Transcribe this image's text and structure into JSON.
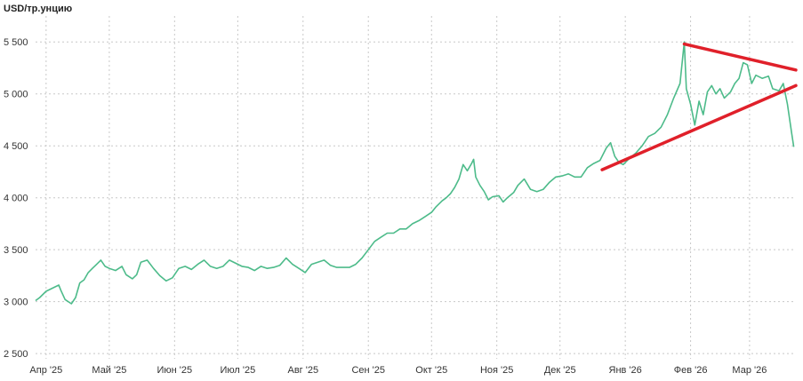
{
  "chart_data": {
    "type": "line",
    "ylabel": "USD/тр.унцию",
    "ylim": [
      2450,
      5750
    ],
    "y_ticks": [
      2500,
      3000,
      3500,
      4000,
      4500,
      5000,
      5500
    ],
    "y_tick_labels": [
      "2 500",
      "3 000",
      "3 500",
      "4 000",
      "4 500",
      "5 000",
      "5 500"
    ],
    "x_range": [
      "2025-03-27",
      "2026-03-23"
    ],
    "x_ticks": [
      {
        "date": "2025-04-01",
        "label": "Апр '25"
      },
      {
        "date": "2025-05-01",
        "label": "Май '25"
      },
      {
        "date": "2025-06-01",
        "label": "Июн '25"
      },
      {
        "date": "2025-07-01",
        "label": "Июл '25"
      },
      {
        "date": "2025-08-01",
        "label": "Авг '25"
      },
      {
        "date": "2025-09-01",
        "label": "Сен '25"
      },
      {
        "date": "2025-10-01",
        "label": "Окт '25"
      },
      {
        "date": "2025-11-01",
        "label": "Ноя '25"
      },
      {
        "date": "2025-12-01",
        "label": "Дек '25"
      },
      {
        "date": "2026-01-01",
        "label": "Янв '26"
      },
      {
        "date": "2026-02-01",
        "label": "Фев '26"
      },
      {
        "date": "2026-03-01",
        "label": "Мар '26"
      }
    ],
    "grid": true,
    "line_color": "#4dbb8a",
    "trendline_color": "#e0202a",
    "series": [
      {
        "points": [
          [
            "2025-03-27",
            3010
          ],
          [
            "2025-03-29",
            3040
          ],
          [
            "2025-04-01",
            3100
          ],
          [
            "2025-04-04",
            3130
          ],
          [
            "2025-04-07",
            3160
          ],
          [
            "2025-04-08",
            3110
          ],
          [
            "2025-04-10",
            3020
          ],
          [
            "2025-04-13",
            2980
          ],
          [
            "2025-04-15",
            3040
          ],
          [
            "2025-04-17",
            3180
          ],
          [
            "2025-04-19",
            3210
          ],
          [
            "2025-04-21",
            3280
          ],
          [
            "2025-04-23",
            3320
          ],
          [
            "2025-04-25",
            3360
          ],
          [
            "2025-04-27",
            3400
          ],
          [
            "2025-04-29",
            3340
          ],
          [
            "2025-05-01",
            3320
          ],
          [
            "2025-05-04",
            3300
          ],
          [
            "2025-05-07",
            3340
          ],
          [
            "2025-05-09",
            3260
          ],
          [
            "2025-05-12",
            3220
          ],
          [
            "2025-05-14",
            3260
          ],
          [
            "2025-05-16",
            3380
          ],
          [
            "2025-05-19",
            3400
          ],
          [
            "2025-05-22",
            3320
          ],
          [
            "2025-05-25",
            3250
          ],
          [
            "2025-05-28",
            3200
          ],
          [
            "2025-05-31",
            3230
          ],
          [
            "2025-06-03",
            3320
          ],
          [
            "2025-06-06",
            3340
          ],
          [
            "2025-06-09",
            3310
          ],
          [
            "2025-06-12",
            3360
          ],
          [
            "2025-06-15",
            3400
          ],
          [
            "2025-06-18",
            3340
          ],
          [
            "2025-06-21",
            3320
          ],
          [
            "2025-06-24",
            3340
          ],
          [
            "2025-06-27",
            3400
          ],
          [
            "2025-06-30",
            3370
          ],
          [
            "2025-07-03",
            3340
          ],
          [
            "2025-07-06",
            3330
          ],
          [
            "2025-07-09",
            3300
          ],
          [
            "2025-07-12",
            3340
          ],
          [
            "2025-07-15",
            3320
          ],
          [
            "2025-07-18",
            3330
          ],
          [
            "2025-07-21",
            3350
          ],
          [
            "2025-07-24",
            3420
          ],
          [
            "2025-07-27",
            3360
          ],
          [
            "2025-07-30",
            3320
          ],
          [
            "2025-08-02",
            3280
          ],
          [
            "2025-08-05",
            3360
          ],
          [
            "2025-08-08",
            3380
          ],
          [
            "2025-08-11",
            3400
          ],
          [
            "2025-08-14",
            3350
          ],
          [
            "2025-08-17",
            3330
          ],
          [
            "2025-08-20",
            3330
          ],
          [
            "2025-08-23",
            3330
          ],
          [
            "2025-08-26",
            3360
          ],
          [
            "2025-08-29",
            3420
          ],
          [
            "2025-09-01",
            3500
          ],
          [
            "2025-09-04",
            3580
          ],
          [
            "2025-09-07",
            3620
          ],
          [
            "2025-09-10",
            3660
          ],
          [
            "2025-09-13",
            3660
          ],
          [
            "2025-09-16",
            3700
          ],
          [
            "2025-09-19",
            3700
          ],
          [
            "2025-09-22",
            3750
          ],
          [
            "2025-09-25",
            3780
          ],
          [
            "2025-09-28",
            3820
          ],
          [
            "2025-10-01",
            3860
          ],
          [
            "2025-10-03",
            3910
          ],
          [
            "2025-10-06",
            3970
          ],
          [
            "2025-10-08",
            4000
          ],
          [
            "2025-10-10",
            4040
          ],
          [
            "2025-10-12",
            4100
          ],
          [
            "2025-10-14",
            4180
          ],
          [
            "2025-10-16",
            4320
          ],
          [
            "2025-10-18",
            4260
          ],
          [
            "2025-10-20",
            4330
          ],
          [
            "2025-10-21",
            4370
          ],
          [
            "2025-10-22",
            4200
          ],
          [
            "2025-10-24",
            4120
          ],
          [
            "2025-10-26",
            4060
          ],
          [
            "2025-10-28",
            3980
          ],
          [
            "2025-10-30",
            4010
          ],
          [
            "2025-11-02",
            4020
          ],
          [
            "2025-11-04",
            3960
          ],
          [
            "2025-11-06",
            4000
          ],
          [
            "2025-11-09",
            4050
          ],
          [
            "2025-11-11",
            4120
          ],
          [
            "2025-11-14",
            4180
          ],
          [
            "2025-11-17",
            4080
          ],
          [
            "2025-11-20",
            4060
          ],
          [
            "2025-11-23",
            4080
          ],
          [
            "2025-11-26",
            4150
          ],
          [
            "2025-11-29",
            4200
          ],
          [
            "2025-12-02",
            4210
          ],
          [
            "2025-12-05",
            4230
          ],
          [
            "2025-12-08",
            4200
          ],
          [
            "2025-12-11",
            4200
          ],
          [
            "2025-12-14",
            4290
          ],
          [
            "2025-12-17",
            4330
          ],
          [
            "2025-12-20",
            4360
          ],
          [
            "2025-12-23",
            4480
          ],
          [
            "2025-12-25",
            4530
          ],
          [
            "2025-12-27",
            4400
          ],
          [
            "2025-12-29",
            4340
          ],
          [
            "2025-12-31",
            4320
          ],
          [
            "2026-01-03",
            4380
          ],
          [
            "2026-01-06",
            4430
          ],
          [
            "2026-01-09",
            4500
          ],
          [
            "2026-01-12",
            4590
          ],
          [
            "2026-01-15",
            4620
          ],
          [
            "2026-01-18",
            4680
          ],
          [
            "2026-01-21",
            4800
          ],
          [
            "2026-01-24",
            4960
          ],
          [
            "2026-01-27",
            5100
          ],
          [
            "2026-01-29",
            5500
          ],
          [
            "2026-01-30",
            5050
          ],
          [
            "2026-02-01",
            4900
          ],
          [
            "2026-02-03",
            4700
          ],
          [
            "2026-02-05",
            4930
          ],
          [
            "2026-02-07",
            4800
          ],
          [
            "2026-02-09",
            5020
          ],
          [
            "2026-02-11",
            5080
          ],
          [
            "2026-02-13",
            5000
          ],
          [
            "2026-02-15",
            5050
          ],
          [
            "2026-02-17",
            4960
          ],
          [
            "2026-02-20",
            5020
          ],
          [
            "2026-02-22",
            5100
          ],
          [
            "2026-02-24",
            5150
          ],
          [
            "2026-02-26",
            5300
          ],
          [
            "2026-02-28",
            5280
          ],
          [
            "2026-03-02",
            5100
          ],
          [
            "2026-03-04",
            5180
          ],
          [
            "2026-03-07",
            5150
          ],
          [
            "2026-03-10",
            5170
          ],
          [
            "2026-03-12",
            5050
          ],
          [
            "2026-03-15",
            5030
          ],
          [
            "2026-03-17",
            5100
          ],
          [
            "2026-03-19",
            4900
          ],
          [
            "2026-03-21",
            4620
          ],
          [
            "2026-03-22",
            4490
          ]
        ]
      }
    ],
    "annotations": [
      {
        "type": "trendline",
        "from": [
          "2026-01-29",
          5480
        ],
        "to": [
          "2026-03-23",
          5230
        ]
      },
      {
        "type": "trendline",
        "from": [
          "2025-12-21",
          4270
        ],
        "to": [
          "2026-03-23",
          5080
        ]
      }
    ]
  }
}
